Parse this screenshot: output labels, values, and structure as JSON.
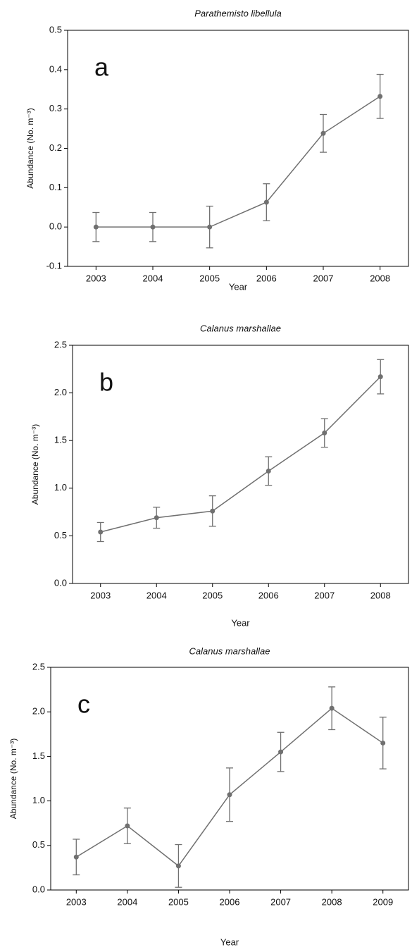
{
  "chart_data": [
    {
      "type": "line",
      "title": "Parathemisto libellula",
      "panel_label": "a",
      "ylabel": "Abundance (No. m⁻³)",
      "xlabel": "Year",
      "categories": [
        "2003",
        "2004",
        "2005",
        "2006",
        "2007",
        "2008"
      ],
      "values": [
        0,
        0,
        0,
        0.063,
        0.238,
        0.332
      ],
      "errors": [
        0.037,
        0.037,
        0.053,
        0.047,
        0.048,
        0.056
      ],
      "color": "#707070",
      "ylim": [
        -0.1,
        0.5
      ],
      "yticks": [
        -0.1,
        {
          "value": 0,
          "label": "0.0"
        },
        0.1,
        0.2,
        0.3,
        0.4,
        0.5
      ]
    },
    {
      "type": "line",
      "title": "Calanus marshallae",
      "panel_label": "b",
      "ylabel": "Abundance (No. m⁻³)",
      "xlabel": "Year",
      "categories": [
        "2003",
        "2004",
        "2005",
        "2006",
        "2007",
        "2008"
      ],
      "values": [
        0.54,
        0.69,
        0.76,
        1.18,
        1.58,
        2.17
      ],
      "errors": [
        0.1,
        0.11,
        0.16,
        0.15,
        0.15,
        0.18
      ],
      "color": "#707070",
      "ylim": [
        0,
        2.5
      ],
      "yticks": [
        {
          "value": 0,
          "label": "0.0"
        },
        0.5,
        {
          "value": 1,
          "label": "1.0"
        },
        1.5,
        {
          "value": 2,
          "label": "2.0"
        },
        2.5
      ]
    },
    {
      "type": "line",
      "title": "Calanus marshallae",
      "panel_label": "c",
      "ylabel": "Abundance (No. m⁻³)",
      "xlabel": "Year",
      "categories": [
        "2003",
        "2004",
        "2005",
        "2006",
        "2007",
        "2008",
        "2009"
      ],
      "values": [
        0.37,
        0.72,
        0.27,
        1.07,
        1.55,
        2.04,
        1.65
      ],
      "errors": [
        0.2,
        0.2,
        0.24,
        0.3,
        0.22,
        0.24,
        0.29
      ],
      "color": "#707070",
      "ylim": [
        0,
        2.5
      ],
      "yticks": [
        {
          "value": 0,
          "label": "0.0"
        },
        0.5,
        {
          "value": 1,
          "label": "1.0"
        },
        1.5,
        {
          "value": 2,
          "label": "2.0"
        },
        2.5
      ]
    }
  ]
}
